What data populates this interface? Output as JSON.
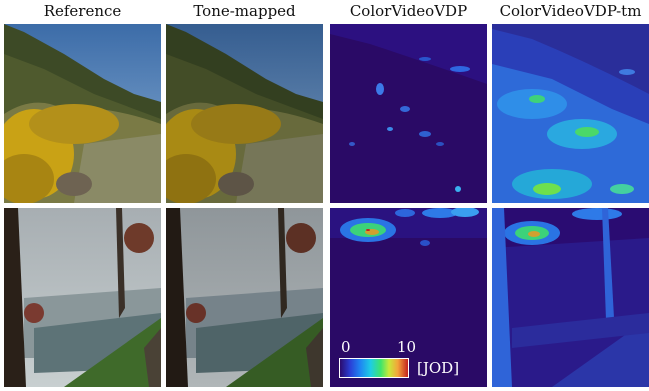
{
  "columns": [
    {
      "title": "Reference"
    },
    {
      "title": "Tone-mapped"
    },
    {
      "title": "ColorVideoVDP"
    },
    {
      "title": "ColorVideoVDP-tm"
    }
  ],
  "colorbar": {
    "min_label": "0",
    "max_label": "10",
    "unit_label": "[JOD]",
    "colors": [
      "#2b0b6e",
      "#2a3fd6",
      "#1f86f2",
      "#1ecde4",
      "#3ee56b",
      "#c8e93a",
      "#f3a43a",
      "#c4231f"
    ]
  }
}
